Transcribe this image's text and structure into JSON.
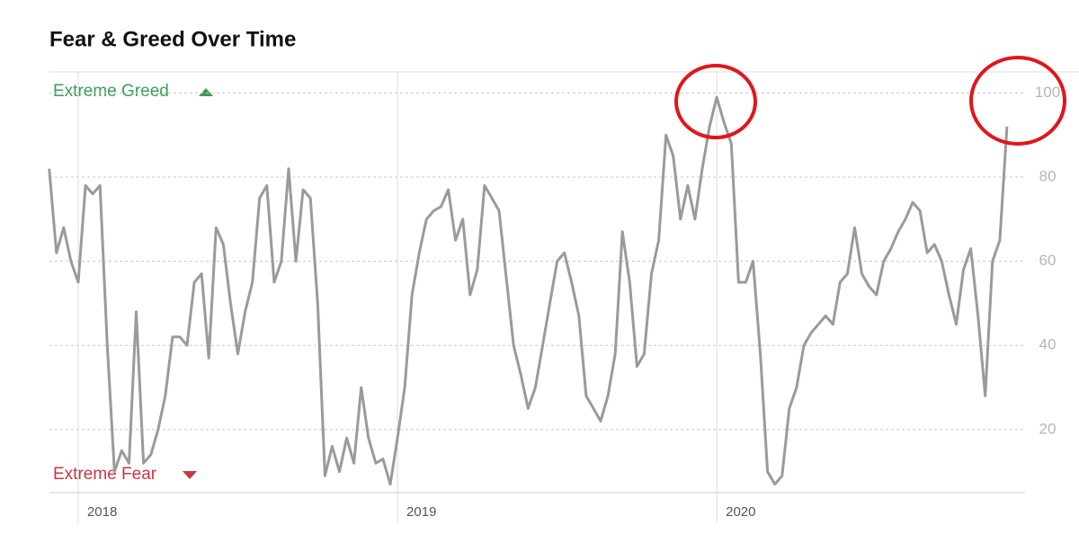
{
  "chart_data": {
    "type": "line",
    "title": "Fear & Greed Over Time",
    "annotations": {
      "greed": "Extreme Greed",
      "fear": "Extreme Fear"
    },
    "categories": [
      null,
      null,
      null,
      null,
      "2018",
      null,
      null,
      null,
      null,
      null,
      null,
      null,
      null,
      null,
      null,
      null,
      null,
      null,
      null,
      null,
      null,
      null,
      null,
      null,
      null,
      null,
      null,
      null,
      null,
      null,
      null,
      null,
      null,
      null,
      null,
      null,
      null,
      null,
      null,
      null,
      null,
      null,
      null,
      null,
      null,
      null,
      null,
      null,
      "2019",
      null,
      null,
      null,
      null,
      null,
      null,
      null,
      null,
      null,
      null,
      null,
      null,
      null,
      null,
      null,
      null,
      null,
      null,
      null,
      null,
      null,
      null,
      null,
      null,
      null,
      null,
      null,
      null,
      null,
      null,
      null,
      null,
      null,
      null,
      null,
      null,
      null,
      null,
      null,
      null,
      null,
      null,
      null,
      "2020",
      null,
      null,
      null,
      null,
      null,
      null,
      null,
      null,
      null,
      null,
      null,
      null,
      null,
      null,
      null,
      null,
      null,
      null,
      null,
      null,
      null,
      null,
      null,
      null,
      null,
      null,
      null,
      null,
      null,
      null,
      null,
      null,
      null,
      null,
      null,
      null,
      null,
      null,
      null,
      null
    ],
    "values": [
      82,
      62,
      68,
      60,
      55,
      78,
      76,
      78,
      40,
      10,
      15,
      12,
      48,
      12,
      14,
      20,
      28,
      42,
      42,
      40,
      55,
      57,
      37,
      68,
      64,
      50,
      38,
      48,
      55,
      75,
      78,
      55,
      60,
      82,
      60,
      77,
      75,
      50,
      9,
      16,
      10,
      18,
      12,
      30,
      18,
      12,
      13,
      7,
      18,
      30,
      52,
      62,
      70,
      72,
      73,
      77,
      65,
      70,
      52,
      58,
      78,
      75,
      72,
      56,
      40,
      33,
      25,
      30,
      40,
      50,
      60,
      62,
      55,
      47,
      28,
      25,
      22,
      28,
      38,
      67,
      55,
      35,
      38,
      57,
      65,
      90,
      85,
      70,
      78,
      70,
      82,
      92,
      99,
      93,
      88,
      55,
      55,
      60,
      38,
      10,
      7,
      9,
      25,
      30,
      40,
      43,
      45,
      47,
      45,
      55,
      57,
      68,
      57,
      54,
      52,
      60,
      63,
      67,
      70,
      74,
      72,
      62,
      64,
      60,
      52,
      45,
      58,
      63,
      47,
      28,
      60,
      65,
      92
    ],
    "color": "#9a9a9a",
    "ylim": [
      5,
      105
    ],
    "yticks": [
      20,
      40,
      60,
      80,
      100
    ],
    "grid": true
  }
}
